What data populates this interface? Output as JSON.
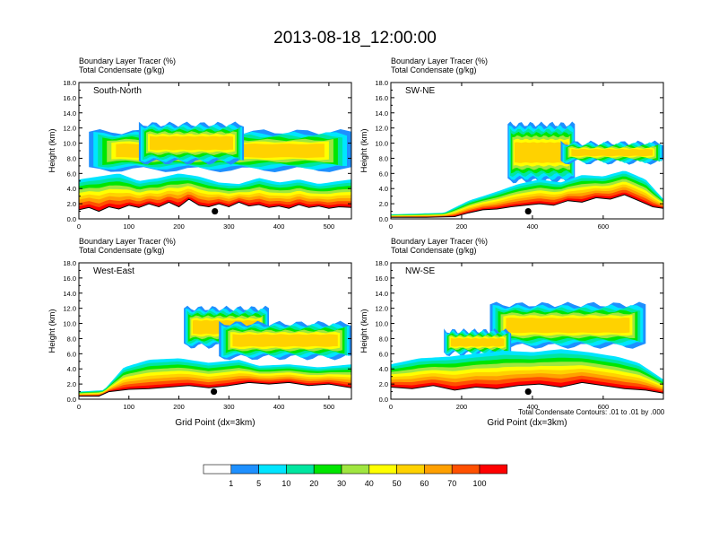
{
  "title": "2013-08-18_12:00:00",
  "colors": {
    "levels": [
      "#ffffff",
      "#1e90ff",
      "#00e5ff",
      "#00e6a0",
      "#00e600",
      "#a0e640",
      "#ffff00",
      "#ffd200",
      "#ffa000",
      "#ff5000",
      "#ff0000"
    ],
    "terrain": "#000000",
    "marker": "#000000"
  },
  "colorbar": {
    "labels": [
      "1",
      "5",
      "10",
      "20",
      "30",
      "40",
      "50",
      "60",
      "70",
      "100"
    ]
  },
  "footnote": "Total Condensate Contours: .01 to .01 by .000",
  "chart_data": [
    {
      "type": "heatmap",
      "panel_label": "South-North",
      "subtitle_line1": "Boundary Layer Tracer   (%)",
      "subtitle_line2": "Total Condensate   (g/kg)",
      "ylabel": "Height (km)",
      "xlabel": "",
      "xlim": [
        0,
        545
      ],
      "ylim": [
        0,
        18
      ],
      "xticks": [
        0,
        100,
        200,
        300,
        400,
        500
      ],
      "yticks": [
        "0.0",
        "2.0",
        "4.0",
        "6.0",
        "8.0",
        "10.0",
        "12.0",
        "14.0",
        "16.0",
        "18.0"
      ],
      "marker": [
        272,
        1.0
      ],
      "terrain": [
        [
          0,
          1.2
        ],
        [
          20,
          1.5
        ],
        [
          40,
          1.0
        ],
        [
          60,
          1.6
        ],
        [
          80,
          1.3
        ],
        [
          100,
          1.8
        ],
        [
          120,
          1.5
        ],
        [
          140,
          2.0
        ],
        [
          160,
          1.6
        ],
        [
          180,
          2.2
        ],
        [
          200,
          1.6
        ],
        [
          220,
          2.6
        ],
        [
          240,
          1.8
        ],
        [
          260,
          1.6
        ],
        [
          280,
          2.0
        ],
        [
          300,
          1.6
        ],
        [
          320,
          2.2
        ],
        [
          340,
          1.7
        ],
        [
          360,
          1.9
        ],
        [
          380,
          1.5
        ],
        [
          400,
          1.7
        ],
        [
          420,
          1.4
        ],
        [
          440,
          1.9
        ],
        [
          460,
          1.5
        ],
        [
          480,
          1.7
        ],
        [
          500,
          1.4
        ],
        [
          520,
          1.6
        ],
        [
          545,
          1.5
        ]
      ],
      "boundary_layer": [
        [
          0,
          5.2
        ],
        [
          40,
          5.6
        ],
        [
          80,
          6.0
        ],
        [
          120,
          5.0
        ],
        [
          160,
          5.4
        ],
        [
          200,
          6.0
        ],
        [
          240,
          5.6
        ],
        [
          280,
          4.8
        ],
        [
          320,
          4.6
        ],
        [
          360,
          5.4
        ],
        [
          400,
          4.8
        ],
        [
          440,
          5.2
        ],
        [
          480,
          4.6
        ],
        [
          520,
          5.0
        ],
        [
          545,
          5.2
        ]
      ],
      "cloud_layers": [
        {
          "x": [
            20,
            545
          ],
          "base": 6.5,
          "top": 11.5,
          "peak": 13.8
        },
        {
          "x": [
            120,
            330
          ],
          "base": 7.5,
          "top": 12.5,
          "peak": 12.2
        }
      ]
    },
    {
      "type": "heatmap",
      "panel_label": "SW-NE",
      "subtitle_line1": "Boundary Layer Tracer   (%)",
      "subtitle_line2": "Total Condensate   (g/kg)",
      "ylabel": "Height (km)",
      "xlabel": "",
      "xlim": [
        0,
        770
      ],
      "ylim": [
        0,
        18
      ],
      "xticks": [
        0,
        200,
        400,
        600
      ],
      "yticks": [
        "0.0",
        "2.0",
        "4.0",
        "6.0",
        "8.0",
        "10.0",
        "12.0",
        "14.0",
        "16.0",
        "18.0"
      ],
      "marker": [
        388,
        1.0
      ],
      "terrain": [
        [
          0,
          0.2
        ],
        [
          100,
          0.2
        ],
        [
          180,
          0.3
        ],
        [
          220,
          0.8
        ],
        [
          260,
          1.2
        ],
        [
          300,
          1.3
        ],
        [
          340,
          1.6
        ],
        [
          380,
          1.8
        ],
        [
          420,
          2.0
        ],
        [
          460,
          1.8
        ],
        [
          500,
          2.4
        ],
        [
          540,
          2.2
        ],
        [
          580,
          2.8
        ],
        [
          620,
          2.6
        ],
        [
          660,
          3.2
        ],
        [
          700,
          2.4
        ],
        [
          740,
          1.6
        ],
        [
          770,
          1.4
        ]
      ],
      "boundary_layer": [
        [
          0,
          0.6
        ],
        [
          150,
          0.8
        ],
        [
          220,
          2.4
        ],
        [
          300,
          3.6
        ],
        [
          360,
          4.6
        ],
        [
          420,
          5.2
        ],
        [
          480,
          4.8
        ],
        [
          540,
          5.8
        ],
        [
          600,
          5.6
        ],
        [
          660,
          6.4
        ],
        [
          720,
          5.2
        ],
        [
          770,
          2.6
        ]
      ],
      "cloud_layers": [
        {
          "x": [
            330,
            520
          ],
          "base": 5.0,
          "top": 12.5,
          "peak": 13.6
        },
        {
          "x": [
            480,
            770
          ],
          "base": 7.5,
          "top": 10.0,
          "peak": 10.8
        }
      ]
    },
    {
      "type": "heatmap",
      "panel_label": "West-East",
      "subtitle_line1": "Boundary Layer Tracer   (%)",
      "subtitle_line2": "Total Condensate   (g/kg)",
      "ylabel": "Height (km)",
      "xlabel": "Grid Point (dx=3km)",
      "xlim": [
        0,
        545
      ],
      "ylim": [
        0,
        18
      ],
      "xticks": [
        0,
        100,
        200,
        300,
        400,
        500
      ],
      "yticks": [
        "0.0",
        "2.0",
        "4.0",
        "6.0",
        "8.0",
        "10.0",
        "12.0",
        "14.0",
        "16.0",
        "18.0"
      ],
      "marker": [
        270,
        1.0
      ],
      "terrain": [
        [
          0,
          0.4
        ],
        [
          40,
          0.4
        ],
        [
          60,
          1.0
        ],
        [
          100,
          1.3
        ],
        [
          140,
          1.4
        ],
        [
          180,
          1.6
        ],
        [
          220,
          1.8
        ],
        [
          260,
          1.5
        ],
        [
          300,
          1.8
        ],
        [
          340,
          2.2
        ],
        [
          380,
          2.0
        ],
        [
          420,
          2.2
        ],
        [
          460,
          1.8
        ],
        [
          500,
          2.0
        ],
        [
          545,
          1.5
        ]
      ],
      "boundary_layer": [
        [
          0,
          1.0
        ],
        [
          50,
          1.2
        ],
        [
          90,
          4.2
        ],
        [
          140,
          5.2
        ],
        [
          200,
          5.4
        ],
        [
          260,
          4.8
        ],
        [
          320,
          5.2
        ],
        [
          360,
          4.4
        ],
        [
          420,
          4.6
        ],
        [
          480,
          4.2
        ],
        [
          545,
          4.6
        ]
      ],
      "cloud_layers": [
        {
          "x": [
            210,
            380
          ],
          "base": 7.0,
          "top": 12.0,
          "peak": 13.0
        },
        {
          "x": [
            280,
            545
          ],
          "base": 5.5,
          "top": 10.0,
          "peak": 11.0
        }
      ]
    },
    {
      "type": "heatmap",
      "panel_label": "NW-SE",
      "subtitle_line1": "Boundary Layer Tracer   (%)",
      "subtitle_line2": "Total Condensate   (g/kg)",
      "ylabel": "Height (km)",
      "xlabel": "Grid Point (dx=3km)",
      "xlim": [
        0,
        770
      ],
      "ylim": [
        0,
        18
      ],
      "xticks": [
        0,
        200,
        400,
        600
      ],
      "yticks": [
        "0.0",
        "2.0",
        "4.0",
        "6.0",
        "8.0",
        "10.0",
        "12.0",
        "14.0",
        "16.0",
        "18.0"
      ],
      "marker": [
        388,
        1.0
      ],
      "terrain": [
        [
          0,
          1.6
        ],
        [
          60,
          1.4
        ],
        [
          120,
          1.8
        ],
        [
          180,
          1.2
        ],
        [
          240,
          1.6
        ],
        [
          300,
          1.4
        ],
        [
          360,
          1.8
        ],
        [
          420,
          2.0
        ],
        [
          480,
          1.6
        ],
        [
          540,
          2.2
        ],
        [
          600,
          1.8
        ],
        [
          660,
          1.4
        ],
        [
          720,
          1.2
        ],
        [
          770,
          0.8
        ]
      ],
      "boundary_layer": [
        [
          0,
          4.6
        ],
        [
          80,
          5.4
        ],
        [
          160,
          5.6
        ],
        [
          240,
          6.0
        ],
        [
          320,
          6.4
        ],
        [
          400,
          6.2
        ],
        [
          480,
          6.6
        ],
        [
          560,
          6.2
        ],
        [
          640,
          5.6
        ],
        [
          700,
          4.8
        ],
        [
          770,
          2.6
        ]
      ],
      "cloud_layers": [
        {
          "x": [
            280,
            720
          ],
          "base": 7.0,
          "top": 12.5,
          "peak": 13.6
        },
        {
          "x": [
            150,
            340
          ],
          "base": 6.0,
          "top": 9.0,
          "peak": 9.8
        }
      ]
    }
  ]
}
